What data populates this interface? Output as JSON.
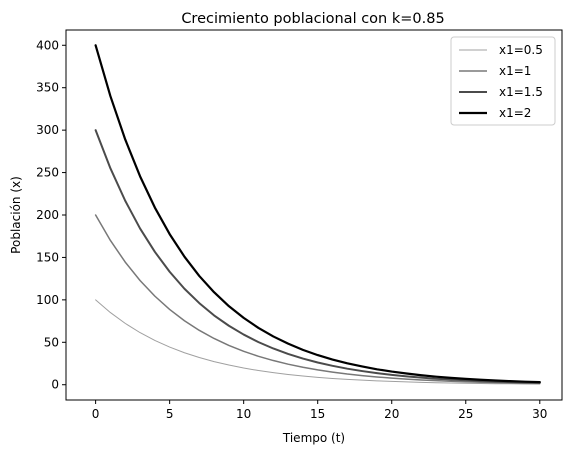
{
  "chart_data": {
    "type": "line",
    "title": "Crecimiento poblacional con k=0.85",
    "xlabel": "Tiempo (t)",
    "ylabel": "Población (x)",
    "xlim": [
      -2,
      31.5
    ],
    "ylim": [
      -18,
      418
    ],
    "xticks": [
      0,
      5,
      10,
      15,
      20,
      25,
      30
    ],
    "yticks": [
      0,
      50,
      100,
      150,
      200,
      250,
      300,
      350,
      400
    ],
    "grid": false,
    "legend_position": "top-right",
    "x": [
      0,
      1,
      2,
      3,
      4,
      5,
      6,
      7,
      8,
      9,
      10,
      11,
      12,
      13,
      14,
      15,
      16,
      17,
      18,
      19,
      20,
      21,
      22,
      23,
      24,
      25,
      26,
      27,
      28,
      29,
      30
    ],
    "series": [
      {
        "name": "x1=0.5",
        "color": "#a0a0a0",
        "width": 1.0,
        "values": [
          100,
          85.0,
          72.3,
          61.4,
          52.2,
          44.4,
          37.7,
          32.1,
          27.2,
          23.2,
          19.7,
          16.7,
          14.2,
          12.1,
          10.3,
          8.7,
          7.4,
          6.3,
          5.4,
          4.6,
          3.9,
          3.3,
          2.8,
          2.4,
          2.0,
          1.7,
          1.5,
          1.2,
          1.1,
          0.9,
          0.8
        ]
      },
      {
        "name": "x1=1",
        "color": "#787878",
        "width": 1.5,
        "values": [
          200,
          170.0,
          144.5,
          122.8,
          104.4,
          88.7,
          75.4,
          64.1,
          54.5,
          46.3,
          39.4,
          33.5,
          28.5,
          24.2,
          20.6,
          17.5,
          14.9,
          12.6,
          10.7,
          9.1,
          7.8,
          6.6,
          5.6,
          4.8,
          4.1,
          3.5,
          2.9,
          2.5,
          2.1,
          1.8,
          1.5
        ]
      },
      {
        "name": "x1=1.5",
        "color": "#4b4b4b",
        "width": 2.0,
        "values": [
          300,
          255.0,
          216.8,
          184.2,
          156.6,
          133.1,
          113.1,
          96.2,
          81.7,
          69.5,
          59.1,
          50.2,
          42.7,
          36.3,
          30.8,
          26.2,
          22.3,
          18.9,
          16.1,
          13.7,
          11.6,
          9.9,
          8.4,
          7.1,
          6.1,
          5.2,
          4.4,
          3.7,
          3.2,
          2.7,
          2.3
        ]
      },
      {
        "name": "x1=2",
        "color": "#000000",
        "width": 2.2,
        "values": [
          400,
          340.0,
          289.0,
          245.7,
          208.8,
          177.5,
          150.9,
          128.2,
          109.0,
          92.6,
          78.8,
          66.9,
          56.9,
          48.4,
          41.1,
          34.9,
          29.7,
          25.2,
          21.5,
          18.2,
          15.5,
          13.2,
          11.2,
          9.5,
          8.1,
          6.9,
          5.9,
          5.0,
          4.2,
          3.6,
          3.1
        ]
      }
    ]
  }
}
